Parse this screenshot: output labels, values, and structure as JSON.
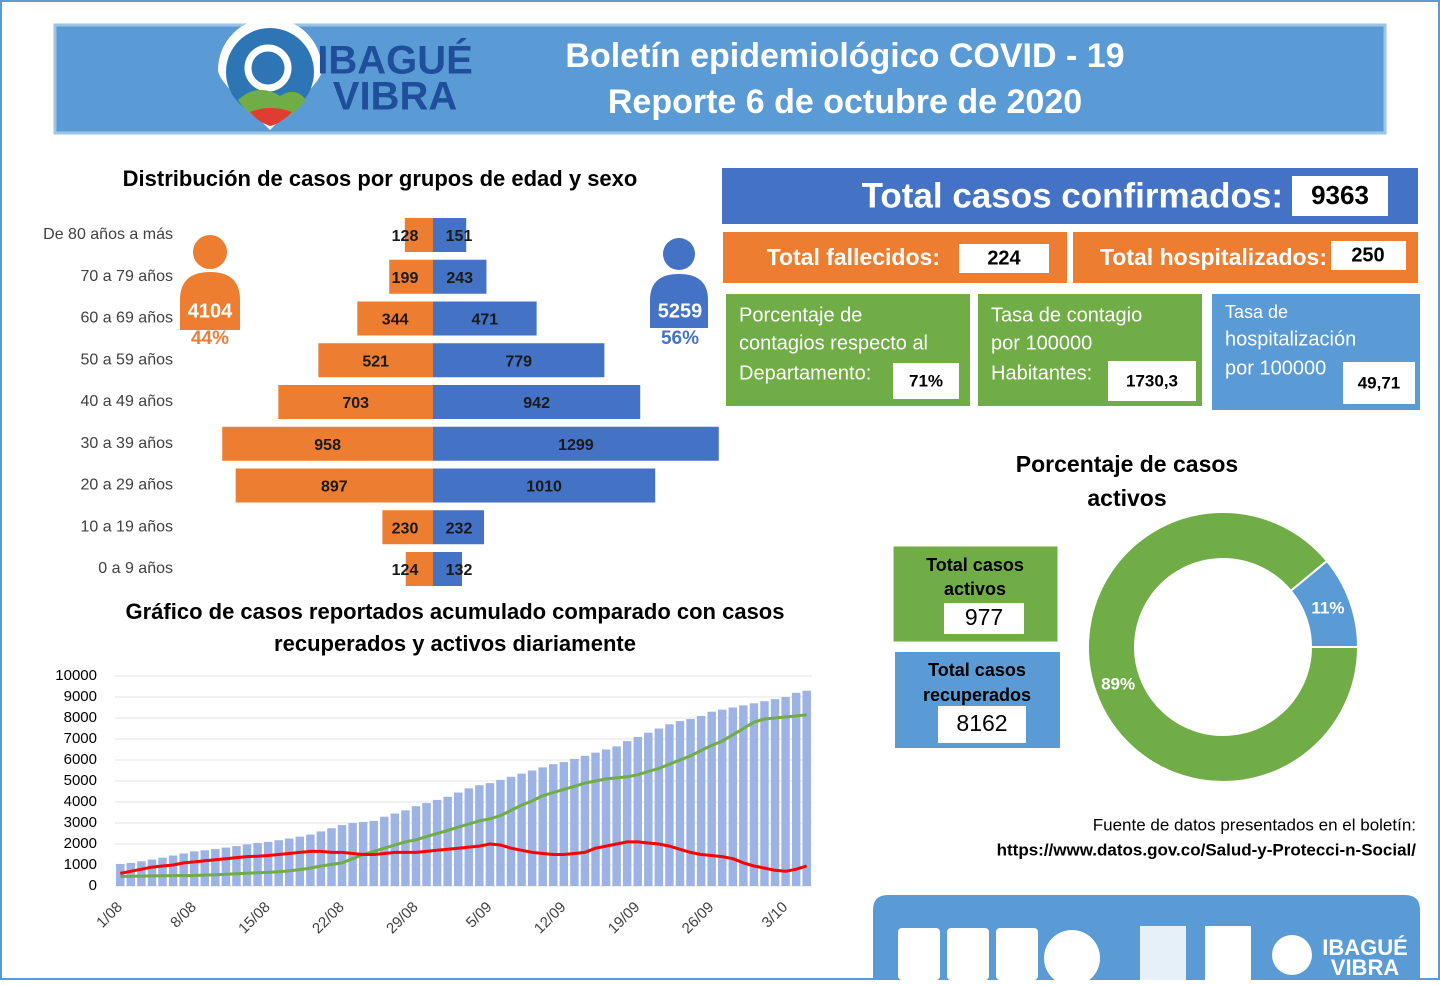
{
  "header": {
    "logo_line1": "IBAGUÉ",
    "logo_line2": "VIBRA",
    "title": "Boletín epidemiológico COVID - 19",
    "subtitle": "Reporte 6 de octubre de 2020"
  },
  "stats": {
    "confirmed_label": "Total casos confirmados:",
    "confirmed": "9363",
    "deaths_label": "Total fallecidos:",
    "deaths": "224",
    "hospitalized_label": "Total hospitalizados:",
    "hospitalized": "250",
    "percent_label": [
      "Porcentaje de",
      "contagios respecto al",
      "Departamento:"
    ],
    "percent": "71%",
    "rate_label": [
      "Tasa de contagio",
      "por 100000",
      "Habitantes:"
    ],
    "rate": "1730,3",
    "hosp_rate_label": [
      "Tasa de",
      "hospitalización",
      "por 100000"
    ],
    "hosp_rate": "49,71",
    "active_label": [
      "Total casos",
      "activos"
    ],
    "active": "977",
    "recovered_label": [
      "Total casos",
      "recuperados"
    ],
    "recovered": "8162"
  },
  "source": {
    "label": "Fuente de datos presentados en el boletín:",
    "url": "https://www.datos.gov.co/Salud-y-Protecci-n-Social/"
  },
  "footer": {
    "logo_line1": "IBAGUÉ",
    "logo_line2": "VIBRA"
  },
  "chart_data": [
    {
      "type": "pyramid",
      "title": "Distribución de casos por grupos de edad y sexo",
      "categories": [
        "De 80 años a más",
        "70 a 79 años",
        "60 a 69 años",
        "50 a 59 años",
        "40 a 49 años",
        "30 a 39 años",
        "20 a 29 años",
        "10 a 19 años",
        "0 a 9 años"
      ],
      "xlim": [
        0,
        1300
      ],
      "series": [
        {
          "color": "#ED7D31",
          "values": [
            128,
            199,
            344,
            521,
            703,
            958,
            897,
            230,
            124
          ],
          "total": 4104,
          "share": {
            "value": 44,
            "label": "44%"
          }
        },
        {
          "color": "#4472C4",
          "values": [
            151,
            243,
            471,
            779,
            942,
            1299,
            1010,
            232,
            132
          ],
          "total": 5259,
          "share": {
            "value": 56,
            "label": "56%"
          }
        }
      ]
    },
    {
      "type": "donut",
      "title": [
        "Porcentaje de casos",
        "activos"
      ],
      "values": [
        89,
        11
      ],
      "value_labels": [
        "89%",
        "11%"
      ],
      "colors": [
        "#70AD47",
        "#5B9BD5"
      ]
    },
    {
      "type": "combo",
      "title": [
        "Gráfico de casos reportados acumulado comparado con casos",
        "recuperados y activos diariamente"
      ],
      "categories": [
        "1/08",
        null,
        null,
        null,
        null,
        null,
        null,
        "8/08",
        null,
        null,
        null,
        null,
        null,
        null,
        "15/08",
        null,
        null,
        null,
        null,
        null,
        null,
        "22/08",
        null,
        null,
        null,
        null,
        null,
        null,
        "29/08",
        null,
        null,
        null,
        null,
        null,
        null,
        "5/09",
        null,
        null,
        null,
        null,
        null,
        null,
        "12/09",
        null,
        null,
        null,
        null,
        null,
        null,
        "19/09",
        null,
        null,
        null,
        null,
        null,
        null,
        "26/09",
        null,
        null,
        null,
        null,
        null,
        null,
        "3/10",
        null,
        null
      ],
      "ylim": [
        0,
        10000
      ],
      "yticks": [
        0,
        1000,
        2000,
        3000,
        4000,
        5000,
        6000,
        7000,
        8000,
        9000,
        10000
      ],
      "grid": true,
      "series": [
        {
          "kind": "bar",
          "color": "#9DB3E3",
          "values": [
            1050,
            1100,
            1180,
            1260,
            1350,
            1450,
            1550,
            1650,
            1700,
            1760,
            1830,
            1900,
            1980,
            2050,
            2100,
            2180,
            2260,
            2350,
            2450,
            2600,
            2750,
            2900,
            3000,
            3050,
            3100,
            3300,
            3450,
            3600,
            3800,
            3950,
            4100,
            4250,
            4450,
            4650,
            4800,
            4900,
            5050,
            5200,
            5350,
            5500,
            5650,
            5800,
            5900,
            6050,
            6200,
            6350,
            6500,
            6650,
            6900,
            7100,
            7300,
            7500,
            7700,
            7850,
            7950,
            8100,
            8300,
            8400,
            8500,
            8600,
            8700,
            8800,
            8900,
            9000,
            9200,
            9300
          ]
        },
        {
          "kind": "line",
          "color": "#70AD47",
          "values": [
            450,
            460,
            470,
            480,
            490,
            495,
            500,
            500,
            520,
            540,
            560,
            580,
            610,
            630,
            650,
            680,
            720,
            780,
            850,
            950,
            1030,
            1100,
            1300,
            1500,
            1650,
            1800,
            1950,
            2100,
            2200,
            2350,
            2500,
            2650,
            2800,
            2950,
            3100,
            3200,
            3350,
            3600,
            3850,
            4050,
            4300,
            4450,
            4600,
            4750,
            4900,
            5000,
            5100,
            5150,
            5200,
            5300,
            5450,
            5600,
            5800,
            6000,
            6200,
            6450,
            6700,
            6900,
            7200,
            7500,
            7800,
            7950,
            8000,
            8050,
            8100,
            8150
          ]
        },
        {
          "kind": "line",
          "color": "#FF0000",
          "values": [
            600,
            700,
            800,
            900,
            950,
            1000,
            1100,
            1150,
            1200,
            1250,
            1300,
            1350,
            1400,
            1420,
            1450,
            1500,
            1550,
            1600,
            1650,
            1650,
            1600,
            1600,
            1550,
            1500,
            1500,
            1550,
            1600,
            1600,
            1600,
            1650,
            1700,
            1750,
            1800,
            1850,
            1900,
            2000,
            1950,
            1800,
            1700,
            1600,
            1550,
            1500,
            1500,
            1550,
            1600,
            1800,
            1900,
            2000,
            2100,
            2100,
            2050,
            2000,
            1900,
            1750,
            1600,
            1500,
            1450,
            1400,
            1300,
            1100,
            950,
            850,
            750,
            700,
            800,
            950
          ]
        }
      ]
    }
  ]
}
